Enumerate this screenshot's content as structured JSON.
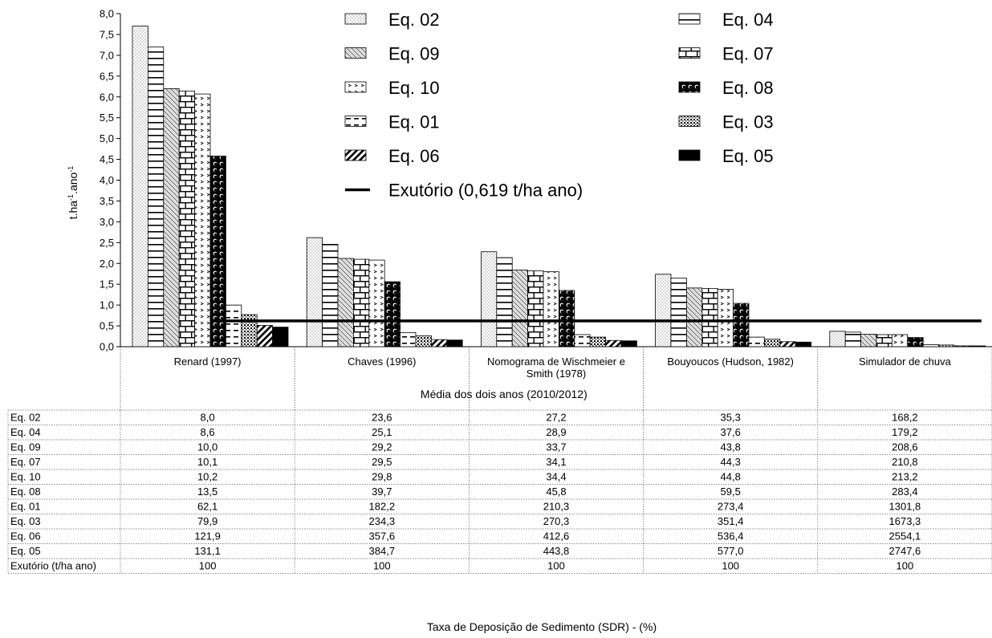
{
  "chart_data": {
    "type": "bar",
    "ylabel": "t.ha⁻¹.ano⁻¹",
    "ylim": [
      0,
      8
    ],
    "ytick_step": 0.5,
    "yticks": [
      "0,0",
      "0,5",
      "1,0",
      "1,5",
      "2,0",
      "2,5",
      "3,0",
      "3,5",
      "4,0",
      "4,5",
      "5,0",
      "5,5",
      "6,0",
      "6,5",
      "7,0",
      "7,5",
      "8,0"
    ],
    "categories": [
      "Renard (1997)",
      "Chaves (1996)",
      "Nomograma de Wischmeier e Smith (1978)",
      "Bouyoucos (Hudson, 1982)",
      "Simulador de chuva"
    ],
    "series": [
      {
        "name": "Eq. 02",
        "pattern": "dots-light",
        "values": [
          7.7,
          2.62,
          2.28,
          1.74,
          0.37
        ]
      },
      {
        "name": "Eq. 04",
        "pattern": "hlines",
        "values": [
          7.2,
          2.46,
          2.14,
          1.65,
          0.35
        ]
      },
      {
        "name": "Eq. 09",
        "pattern": "diag",
        "values": [
          6.2,
          2.12,
          1.84,
          1.41,
          0.3
        ]
      },
      {
        "name": "Eq. 07",
        "pattern": "bricks",
        "values": [
          6.14,
          2.1,
          1.82,
          1.4,
          0.29
        ]
      },
      {
        "name": "Eq. 10",
        "pattern": "chevrons",
        "values": [
          6.07,
          2.08,
          1.8,
          1.38,
          0.29
        ]
      },
      {
        "name": "Eq. 08",
        "pattern": "circles",
        "values": [
          4.58,
          1.56,
          1.35,
          1.04,
          0.22
        ]
      },
      {
        "name": "Eq. 01",
        "pattern": "dashes",
        "values": [
          1.0,
          0.34,
          0.29,
          0.23,
          0.05
        ]
      },
      {
        "name": "Eq. 03",
        "pattern": "dots-dense",
        "values": [
          0.77,
          0.26,
          0.23,
          0.18,
          0.04
        ]
      },
      {
        "name": "Eq. 06",
        "pattern": "wide-diag",
        "values": [
          0.51,
          0.17,
          0.15,
          0.12,
          0.02
        ]
      },
      {
        "name": "Eq. 05",
        "pattern": "solid",
        "values": [
          0.47,
          0.16,
          0.14,
          0.11,
          0.02
        ]
      }
    ],
    "reference_line": {
      "name": "Exutório (0,619 t/ha ano)",
      "value": 0.619
    },
    "legend_order": [
      "Eq. 02",
      "Eq. 04",
      "Eq. 09",
      "Eq. 07",
      "Eq. 10",
      "Eq. 08",
      "Eq. 01",
      "Eq. 03",
      "Eq. 06",
      "Eq. 05"
    ],
    "legend_extra": "Exutório (0,619 t/ha ano)",
    "legend_placement": "top-center",
    "grid": false,
    "subtitle": "Média dos dois anos (2010/2012)",
    "table": {
      "rows": [
        {
          "label": "Eq. 02",
          "values": [
            "8,0",
            "23,6",
            "27,2",
            "35,3",
            "168,2"
          ]
        },
        {
          "label": "Eq. 04",
          "values": [
            "8,6",
            "25,1",
            "28,9",
            "37,6",
            "179,2"
          ]
        },
        {
          "label": "Eq. 09",
          "values": [
            "10,0",
            "29,2",
            "33,7",
            "43,8",
            "208,6"
          ]
        },
        {
          "label": "Eq. 07",
          "values": [
            "10,1",
            "29,5",
            "34,1",
            "44,3",
            "210,8"
          ]
        },
        {
          "label": "Eq. 10",
          "values": [
            "10,2",
            "29,8",
            "34,4",
            "44,8",
            "213,2"
          ]
        },
        {
          "label": "Eq. 08",
          "values": [
            "13,5",
            "39,7",
            "45,8",
            "59,5",
            "283,4"
          ]
        },
        {
          "label": "Eq. 01",
          "values": [
            "62,1",
            "182,2",
            "210,3",
            "273,4",
            "1301,8"
          ]
        },
        {
          "label": "Eq. 03",
          "values": [
            "79,9",
            "234,3",
            "270,3",
            "351,4",
            "1673,3"
          ]
        },
        {
          "label": "Eq. 06",
          "values": [
            "121,9",
            "357,6",
            "412,6",
            "536,4",
            "2554,1"
          ]
        },
        {
          "label": "Eq. 05",
          "values": [
            "131,1",
            "384,7",
            "443,8",
            "577,0",
            "2747,6"
          ]
        },
        {
          "label": "Exutório (t/ha ano)",
          "values": [
            "100",
            "100",
            "100",
            "100",
            "100"
          ]
        }
      ]
    },
    "xlabel": "Taxa de Deposição de Sedimento (SDR) - (%)"
  }
}
